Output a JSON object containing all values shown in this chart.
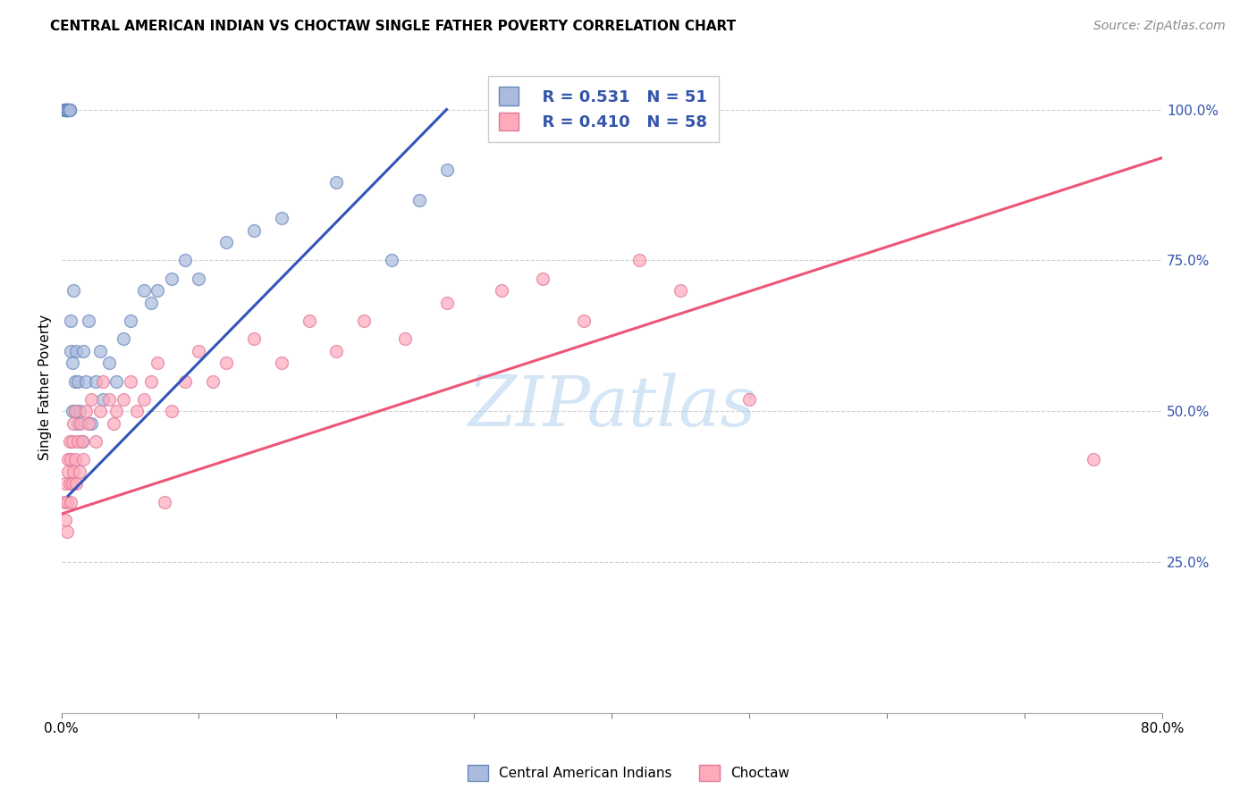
{
  "title": "CENTRAL AMERICAN INDIAN VS CHOCTAW SINGLE FATHER POVERTY CORRELATION CHART",
  "source": "Source: ZipAtlas.com",
  "ylabel": "Single Father Poverty",
  "right_yticks": [
    "100.0%",
    "75.0%",
    "50.0%",
    "25.0%"
  ],
  "right_ytick_vals": [
    1.0,
    0.75,
    0.5,
    0.25
  ],
  "legend_blue_r": "R = 0.531",
  "legend_blue_n": "N = 51",
  "legend_pink_r": "R = 0.410",
  "legend_pink_n": "N = 58",
  "blue_face_color": "#AABBDD",
  "blue_edge_color": "#6688BB",
  "pink_face_color": "#FFAABB",
  "pink_edge_color": "#DD7799",
  "blue_line_color": "#3355BB",
  "pink_line_color": "#EE5577",
  "blue_label": "Central American Indians",
  "pink_label": "Choctaw",
  "watermark": "ZIPatlas",
  "blue_line_x": [
    0.005,
    0.28
  ],
  "blue_line_y": [
    0.36,
    1.0
  ],
  "pink_line_x": [
    0.0,
    0.8
  ],
  "pink_line_y": [
    0.33,
    0.92
  ],
  "xmin": 0.0,
  "xmax": 0.8,
  "ymin": 0.0,
  "ymax": 1.08,
  "background_color": "#FFFFFF",
  "grid_color": "#CCCCCC",
  "axis_label_color": "#3355AA",
  "watermark_color": "#AACCEE",
  "title_fontsize": 11,
  "source_fontsize": 10,
  "legend_fontsize": 13,
  "marker_size": 100,
  "blue_scatter_x": [
    0.002,
    0.002,
    0.003,
    0.003,
    0.003,
    0.004,
    0.004,
    0.004,
    0.004,
    0.005,
    0.005,
    0.005,
    0.006,
    0.006,
    0.006,
    0.007,
    0.007,
    0.008,
    0.008,
    0.009,
    0.01,
    0.01,
    0.011,
    0.012,
    0.012,
    0.013,
    0.015,
    0.016,
    0.018,
    0.02,
    0.022,
    0.025,
    0.028,
    0.03,
    0.035,
    0.04,
    0.045,
    0.05,
    0.06,
    0.065,
    0.07,
    0.08,
    0.09,
    0.1,
    0.12,
    0.14,
    0.16,
    0.2,
    0.24,
    0.26,
    0.28
  ],
  "blue_scatter_y": [
    1.0,
    1.0,
    1.0,
    1.0,
    1.0,
    1.0,
    1.0,
    1.0,
    1.0,
    1.0,
    1.0,
    1.0,
    1.0,
    1.0,
    1.0,
    0.65,
    0.6,
    0.58,
    0.5,
    0.7,
    0.55,
    0.5,
    0.6,
    0.55,
    0.48,
    0.5,
    0.45,
    0.6,
    0.55,
    0.65,
    0.48,
    0.55,
    0.6,
    0.52,
    0.58,
    0.55,
    0.62,
    0.65,
    0.7,
    0.68,
    0.7,
    0.72,
    0.75,
    0.72,
    0.78,
    0.8,
    0.82,
    0.88,
    0.75,
    0.85,
    0.9
  ],
  "pink_scatter_x": [
    0.002,
    0.003,
    0.003,
    0.004,
    0.004,
    0.005,
    0.005,
    0.006,
    0.006,
    0.007,
    0.007,
    0.008,
    0.008,
    0.009,
    0.009,
    0.01,
    0.01,
    0.011,
    0.012,
    0.013,
    0.014,
    0.015,
    0.016,
    0.018,
    0.02,
    0.022,
    0.025,
    0.028,
    0.03,
    0.035,
    0.038,
    0.04,
    0.045,
    0.05,
    0.055,
    0.06,
    0.065,
    0.07,
    0.075,
    0.08,
    0.09,
    0.1,
    0.11,
    0.12,
    0.14,
    0.16,
    0.18,
    0.2,
    0.22,
    0.25,
    0.28,
    0.32,
    0.35,
    0.38,
    0.42,
    0.45,
    0.5,
    0.75
  ],
  "pink_scatter_y": [
    0.35,
    0.32,
    0.38,
    0.3,
    0.35,
    0.4,
    0.42,
    0.38,
    0.45,
    0.35,
    0.42,
    0.38,
    0.45,
    0.4,
    0.48,
    0.42,
    0.5,
    0.38,
    0.45,
    0.4,
    0.48,
    0.45,
    0.42,
    0.5,
    0.48,
    0.52,
    0.45,
    0.5,
    0.55,
    0.52,
    0.48,
    0.5,
    0.52,
    0.55,
    0.5,
    0.52,
    0.55,
    0.58,
    0.35,
    0.5,
    0.55,
    0.6,
    0.55,
    0.58,
    0.62,
    0.58,
    0.65,
    0.6,
    0.65,
    0.62,
    0.68,
    0.7,
    0.72,
    0.65,
    0.75,
    0.7,
    0.52,
    0.42
  ]
}
